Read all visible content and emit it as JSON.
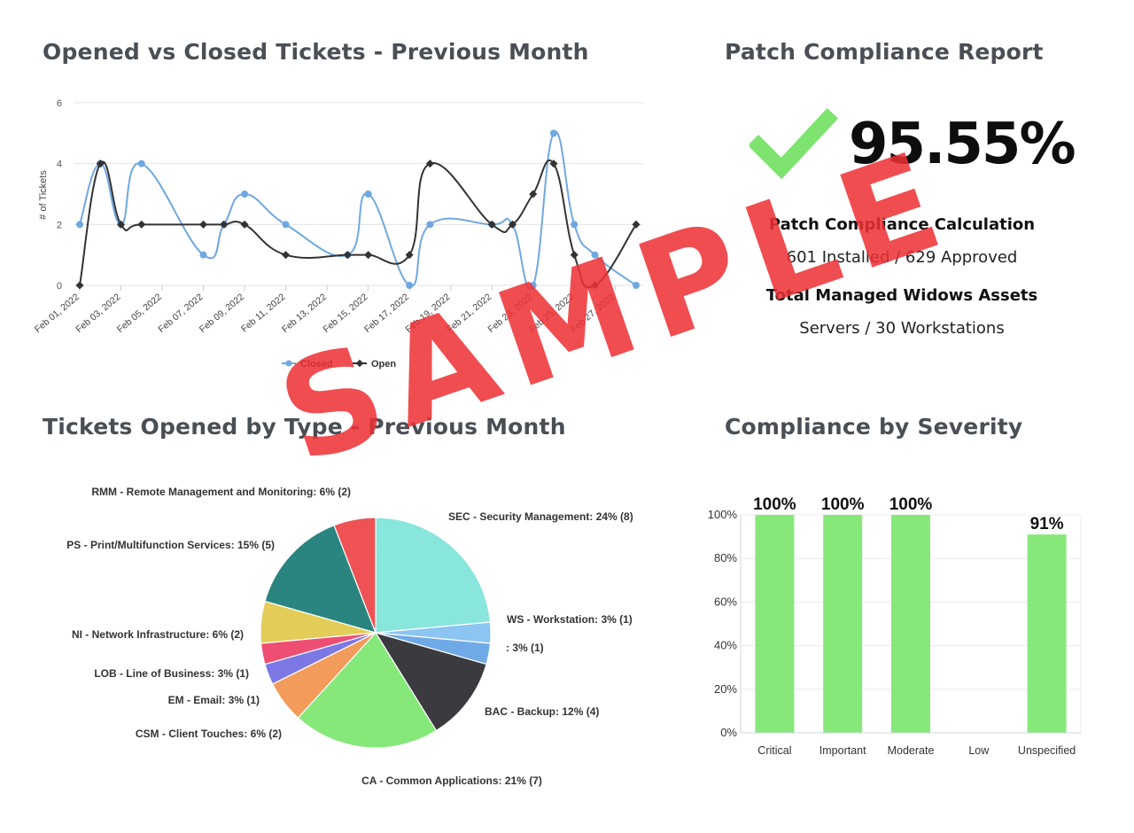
{
  "line_title": "Opened vs Closed Tickets - Previous Month",
  "patch_title": "Patch Compliance Report",
  "pie_title": "Tickets Opened by Type - Previous Month",
  "severity_title": "Compliance by Severity",
  "patch": {
    "percentage": "95.55%",
    "calc_heading": "Patch Compliance Calculation",
    "calc_text": "601 Installed / 629 Approved",
    "assets_heading": "Total Managed Widows Assets",
    "assets_text": "Servers / 30 Workstations",
    "check_icon": "checkmark-icon",
    "check_color": "#7ee36f"
  },
  "watermark": "SAMPLE",
  "chart_data": [
    {
      "type": "line",
      "ylabel": "# of Tickets",
      "ylim": [
        0,
        6
      ],
      "yticks": [
        0,
        2,
        4,
        6
      ],
      "xticklabels": [
        "Feb 01, 2022",
        "Feb 03, 2022",
        "Feb 05, 2022",
        "Feb 07, 2022",
        "Feb 09, 2022",
        "Feb 11, 2022",
        "Feb 13, 2022",
        "Feb 15, 2022",
        "Feb 17, 2022",
        "Feb 19, 2022",
        "Feb 21, 2022",
        "Feb 23, 2022",
        "Feb 25, 2022",
        "Feb 27, 2022"
      ],
      "legend_position": "bottom",
      "grid": true,
      "series": [
        {
          "name": "Closed",
          "color": "#6fa8e0",
          "points": [
            [
              1,
              2
            ],
            [
              2,
              4
            ],
            [
              3,
              2
            ],
            [
              4,
              4
            ],
            [
              7,
              1
            ],
            [
              8,
              2
            ],
            [
              9,
              3
            ],
            [
              11,
              2
            ],
            [
              14,
              1
            ],
            [
              15,
              3
            ],
            [
              17,
              0
            ],
            [
              18,
              2
            ],
            [
              21,
              2
            ],
            [
              22,
              2
            ],
            [
              23,
              0
            ],
            [
              24,
              5
            ],
            [
              25,
              2
            ],
            [
              26,
              1
            ],
            [
              28,
              0
            ]
          ]
        },
        {
          "name": "Open",
          "color": "#333333",
          "points": [
            [
              1,
              0
            ],
            [
              2,
              4
            ],
            [
              3,
              2
            ],
            [
              4,
              2
            ],
            [
              7,
              2
            ],
            [
              8,
              2
            ],
            [
              9,
              2
            ],
            [
              11,
              1
            ],
            [
              14,
              1
            ],
            [
              15,
              1
            ],
            [
              17,
              1
            ],
            [
              18,
              4
            ],
            [
              21,
              2
            ],
            [
              22,
              2
            ],
            [
              23,
              3
            ],
            [
              24,
              4
            ],
            [
              25,
              1
            ],
            [
              26,
              0
            ],
            [
              28,
              2
            ]
          ]
        }
      ]
    },
    {
      "type": "pie",
      "slices": [
        {
          "label": "SEC - Security Management: 24% (8)",
          "value": 8,
          "color": "#88e6dc"
        },
        {
          "label": "WS - Workstation: 3% (1)",
          "value": 1,
          "color": "#8cc4f2"
        },
        {
          "label": ": 3% (1)",
          "value": 1,
          "color": "#6faae6"
        },
        {
          "label": "BAC - Backup: 12% (4)",
          "value": 4,
          "color": "#3a3a3f"
        },
        {
          "label": "CA - Common Applications: 21% (7)",
          "value": 7,
          "color": "#87e87a"
        },
        {
          "label": "CSM - Client Touches: 6% (2)",
          "value": 2,
          "color": "#f39b5a"
        },
        {
          "label": "EM - Email: 3% (1)",
          "value": 1,
          "color": "#7b78e6"
        },
        {
          "label": "LOB - Line of Business: 3% (1)",
          "value": 1,
          "color": "#ef4e73"
        },
        {
          "label": "NI - Network Infrastructure: 6% (2)",
          "value": 2,
          "color": "#e3cd58"
        },
        {
          "label": "PS - Print/Multifunction Services: 15% (5)",
          "value": 5,
          "color": "#2a8580"
        },
        {
          "label": "RMM - Remote Management and Monitoring: 6% (2)",
          "value": 2,
          "color": "#ef5254"
        }
      ]
    },
    {
      "type": "bar",
      "categories": [
        "Critical",
        "Important",
        "Moderate",
        "Low",
        "Unspecified"
      ],
      "values": [
        100,
        100,
        100,
        0,
        91
      ],
      "data_labels": [
        "100%",
        "100%",
        "100%",
        "",
        "91%"
      ],
      "yticklabels": [
        "0%",
        "20%",
        "40%",
        "60%",
        "80%",
        "100%"
      ],
      "ylim": [
        0,
        100
      ],
      "bar_color": "#87e87a",
      "grid": true
    }
  ]
}
